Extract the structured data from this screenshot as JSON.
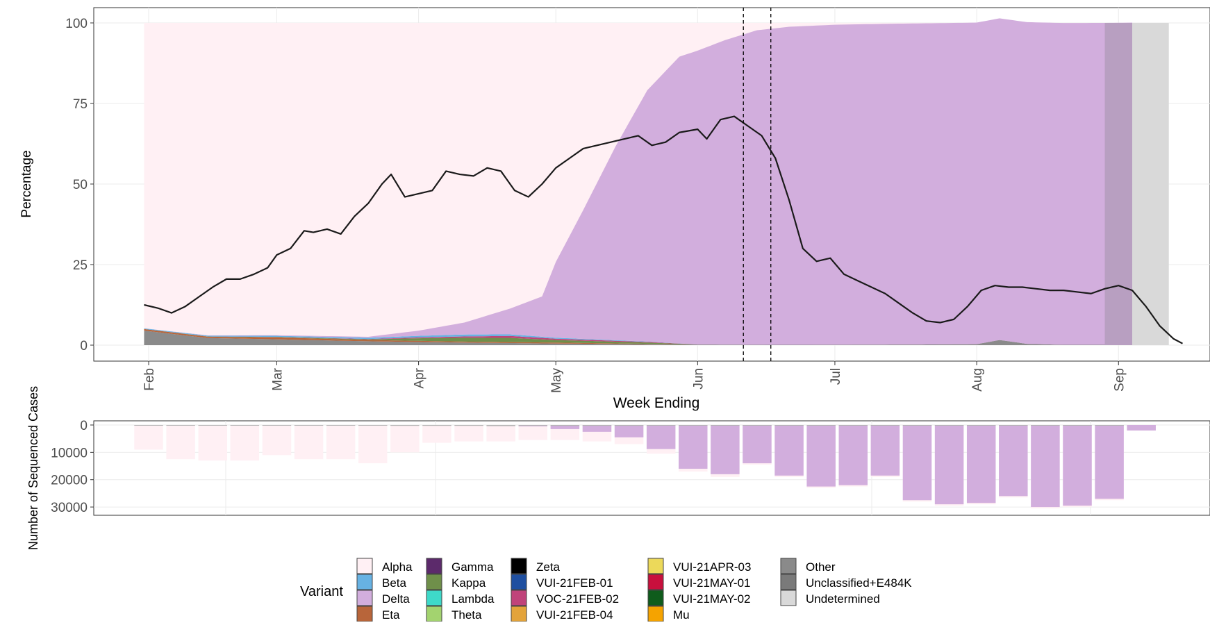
{
  "chart_data": [
    {
      "type": "area",
      "ylabel": "Percentage",
      "xlabel": "Week Ending",
      "ylim": [
        0,
        100
      ],
      "y_ticks": [
        "0",
        "25",
        "50",
        "75",
        "100"
      ],
      "x_ticks": [
        {
          "label": "Feb",
          "date": "2021-02-01"
        },
        {
          "label": "Mar",
          "date": "2021-03-01"
        },
        {
          "label": "Apr",
          "date": "2021-04-01"
        },
        {
          "label": "May",
          "date": "2021-05-01"
        },
        {
          "label": "Jun",
          "date": "2021-06-01"
        },
        {
          "label": "Jul",
          "date": "2021-07-01"
        },
        {
          "label": "Aug",
          "date": "2021-08-01"
        },
        {
          "label": "Sep",
          "date": "2021-09-01"
        }
      ],
      "x_range": [
        "2021-01-20",
        "2021-09-21"
      ],
      "grid": true,
      "vertical_reference_lines": [
        "2021-06-11",
        "2021-06-17"
      ],
      "series": [
        {
          "name": "Other",
          "color": "#8a8a8a",
          "points": [
            [
              "2021-01-31",
              4.5
            ],
            [
              "2021-02-14",
              2.2
            ],
            [
              "2021-03-01",
              1.8
            ],
            [
              "2021-03-21",
              1.2
            ],
            [
              "2021-04-11",
              0.8
            ],
            [
              "2021-05-01",
              0.5
            ],
            [
              "2021-06-01",
              0.2
            ],
            [
              "2021-06-20",
              0.1
            ],
            [
              "2021-07-20",
              0.2
            ],
            [
              "2021-08-01",
              0.3
            ],
            [
              "2021-08-06",
              1.6
            ],
            [
              "2021-08-12",
              0.4
            ],
            [
              "2021-08-20",
              0.1
            ],
            [
              "2021-08-28",
              0.1
            ]
          ]
        },
        {
          "name": "Eta",
          "color": "#b8653a",
          "points": [
            [
              "2021-01-31",
              0.5
            ],
            [
              "2021-02-14",
              0.4
            ],
            [
              "2021-03-01",
              0.6
            ],
            [
              "2021-03-21",
              0.4
            ],
            [
              "2021-04-11",
              0.3
            ],
            [
              "2021-05-01",
              0.3
            ],
            [
              "2021-05-21",
              0.1
            ],
            [
              "2021-06-01",
              0
            ]
          ]
        },
        {
          "name": "Kappa",
          "color": "#6f8f4a",
          "points": [
            [
              "2021-01-31",
              0
            ],
            [
              "2021-03-21",
              0.2
            ],
            [
              "2021-04-01",
              0.8
            ],
            [
              "2021-04-11",
              1.2
            ],
            [
              "2021-04-21",
              1.3
            ],
            [
              "2021-05-01",
              0.8
            ],
            [
              "2021-05-21",
              0.4
            ],
            [
              "2021-06-01",
              0
            ]
          ]
        },
        {
          "name": "VOC-21FEB-02",
          "color": "#c0437a",
          "points": [
            [
              "2021-01-31",
              0
            ],
            [
              "2021-03-21",
              0.1
            ],
            [
              "2021-04-11",
              0.4
            ],
            [
              "2021-04-21",
              0.6
            ],
            [
              "2021-05-01",
              0.4
            ],
            [
              "2021-05-21",
              0.2
            ],
            [
              "2021-06-01",
              0
            ]
          ]
        },
        {
          "name": "Beta",
          "color": "#67b2e3",
          "points": [
            [
              "2021-01-31",
              0.2
            ],
            [
              "2021-03-21",
              0.4
            ],
            [
              "2021-04-01",
              0.5
            ],
            [
              "2021-04-11",
              0.6
            ],
            [
              "2021-04-21",
              0.5
            ],
            [
              "2021-05-01",
              0.3
            ],
            [
              "2021-06-01",
              0
            ]
          ]
        },
        {
          "name": "Delta",
          "color": "#d2aedd",
          "points": [
            [
              "2021-01-31",
              0
            ],
            [
              "2021-03-21",
              0.3
            ],
            [
              "2021-04-01",
              1.6
            ],
            [
              "2021-04-11",
              3.7
            ],
            [
              "2021-04-21",
              8
            ],
            [
              "2021-04-28",
              12.5
            ],
            [
              "2021-05-01",
              23.5
            ],
            [
              "2021-05-07",
              40
            ],
            [
              "2021-05-14",
              60
            ],
            [
              "2021-05-21",
              78
            ],
            [
              "2021-05-28",
              89
            ],
            [
              "2021-06-01",
              91.2
            ],
            [
              "2021-06-07",
              94.5
            ],
            [
              "2021-06-14",
              97.6
            ],
            [
              "2021-06-21",
              98.7
            ],
            [
              "2021-07-01",
              99.3
            ],
            [
              "2021-07-15",
              99.6
            ],
            [
              "2021-08-01",
              99.8
            ],
            [
              "2021-08-29",
              99.9
            ],
            [
              "2021-09-04",
              100
            ]
          ]
        },
        {
          "name": "Undetermined",
          "color": "#d9d9d9",
          "points": [
            [
              "2021-08-29",
              0
            ],
            [
              "2021-09-04",
              100
            ],
            [
              "2021-09-12",
              100
            ]
          ]
        }
      ],
      "line_series": {
        "color": "#1a1a1a",
        "points": [
          [
            "2021-01-31",
            12.5
          ],
          [
            "2021-02-03",
            11.5
          ],
          [
            "2021-02-06",
            10
          ],
          [
            "2021-02-09",
            12
          ],
          [
            "2021-02-12",
            15
          ],
          [
            "2021-02-15",
            18
          ],
          [
            "2021-02-18",
            20.5
          ],
          [
            "2021-02-21",
            20.5
          ],
          [
            "2021-02-24",
            22
          ],
          [
            "2021-02-27",
            24
          ],
          [
            "2021-03-01",
            28
          ],
          [
            "2021-03-04",
            30
          ],
          [
            "2021-03-07",
            35.5
          ],
          [
            "2021-03-09",
            35
          ],
          [
            "2021-03-12",
            36
          ],
          [
            "2021-03-15",
            34.5
          ],
          [
            "2021-03-18",
            40
          ],
          [
            "2021-03-21",
            44
          ],
          [
            "2021-03-24",
            50
          ],
          [
            "2021-03-26",
            53
          ],
          [
            "2021-03-29",
            46
          ],
          [
            "2021-04-01",
            47
          ],
          [
            "2021-04-04",
            48
          ],
          [
            "2021-04-07",
            54
          ],
          [
            "2021-04-10",
            53
          ],
          [
            "2021-04-13",
            52.5
          ],
          [
            "2021-04-16",
            55
          ],
          [
            "2021-04-19",
            54
          ],
          [
            "2021-04-22",
            48
          ],
          [
            "2021-04-25",
            46
          ],
          [
            "2021-04-28",
            50
          ],
          [
            "2021-05-01",
            55
          ],
          [
            "2021-05-04",
            58
          ],
          [
            "2021-05-07",
            61
          ],
          [
            "2021-05-10",
            62
          ],
          [
            "2021-05-13",
            63
          ],
          [
            "2021-05-16",
            64
          ],
          [
            "2021-05-19",
            65
          ],
          [
            "2021-05-22",
            62
          ],
          [
            "2021-05-25",
            63
          ],
          [
            "2021-05-28",
            66
          ],
          [
            "2021-06-01",
            67
          ],
          [
            "2021-06-03",
            64
          ],
          [
            "2021-06-06",
            70
          ],
          [
            "2021-06-09",
            71
          ],
          [
            "2021-06-12",
            68
          ],
          [
            "2021-06-15",
            65
          ],
          [
            "2021-06-18",
            58
          ],
          [
            "2021-06-21",
            45
          ],
          [
            "2021-06-24",
            30
          ],
          [
            "2021-06-27",
            26
          ],
          [
            "2021-06-30",
            27
          ],
          [
            "2021-07-03",
            22
          ],
          [
            "2021-07-06",
            20
          ],
          [
            "2021-07-09",
            18
          ],
          [
            "2021-07-12",
            16
          ],
          [
            "2021-07-15",
            13
          ],
          [
            "2021-07-18",
            10
          ],
          [
            "2021-07-21",
            7.5
          ],
          [
            "2021-07-24",
            7
          ],
          [
            "2021-07-27",
            8
          ],
          [
            "2021-07-30",
            12
          ],
          [
            "2021-08-02",
            17
          ],
          [
            "2021-08-05",
            18.5
          ],
          [
            "2021-08-08",
            18
          ],
          [
            "2021-08-11",
            18
          ],
          [
            "2021-08-14",
            17.5
          ],
          [
            "2021-08-17",
            17
          ],
          [
            "2021-08-20",
            17
          ],
          [
            "2021-08-23",
            16.5
          ],
          [
            "2021-08-26",
            16
          ],
          [
            "2021-08-29",
            17.5
          ],
          [
            "2021-09-01",
            18.5
          ],
          [
            "2021-09-04",
            17
          ],
          [
            "2021-09-07",
            12
          ],
          [
            "2021-09-10",
            6
          ],
          [
            "2021-09-13",
            2
          ],
          [
            "2021-09-15",
            0.5
          ]
        ]
      }
    },
    {
      "type": "bar",
      "ylabel": "Number of Sequenced Cases",
      "ylim": [
        0,
        31500
      ],
      "y_ticks": [
        "0",
        "10000",
        "20000",
        "30000"
      ],
      "inverted": true,
      "weeks": [
        {
          "date": "2021-02-01",
          "total": 9000,
          "delta": 0,
          "other": 100
        },
        {
          "date": "2021-02-08",
          "total": 12500,
          "delta": 0,
          "other": 100
        },
        {
          "date": "2021-02-15",
          "total": 13000,
          "delta": 0,
          "other": 100
        },
        {
          "date": "2021-02-22",
          "total": 13000,
          "delta": 0,
          "other": 150
        },
        {
          "date": "2021-03-01",
          "total": 11000,
          "delta": 0,
          "other": 150
        },
        {
          "date": "2021-03-08",
          "total": 12500,
          "delta": 0,
          "other": 150
        },
        {
          "date": "2021-03-15",
          "total": 12500,
          "delta": 0,
          "other": 150
        },
        {
          "date": "2021-03-22",
          "total": 14000,
          "delta": 0,
          "other": 150
        },
        {
          "date": "2021-03-29",
          "total": 10000,
          "delta": 0,
          "other": 300
        },
        {
          "date": "2021-04-05",
          "total": 6500,
          "delta": 0,
          "other": 300
        },
        {
          "date": "2021-04-12",
          "total": 6000,
          "delta": 0,
          "other": 300
        },
        {
          "date": "2021-04-19",
          "total": 6000,
          "delta": 0,
          "other": 400
        },
        {
          "date": "2021-04-26",
          "total": 5500,
          "delta": 500,
          "other": 300
        },
        {
          "date": "2021-05-03",
          "total": 5500,
          "delta": 1500,
          "other": 300
        },
        {
          "date": "2021-05-10",
          "total": 6000,
          "delta": 2500,
          "other": 300
        },
        {
          "date": "2021-05-17",
          "total": 7000,
          "delta": 4500,
          "other": 300
        },
        {
          "date": "2021-05-24",
          "total": 10500,
          "delta": 8800,
          "other": 200
        },
        {
          "date": "2021-05-31",
          "total": 17000,
          "delta": 16000,
          "other": 200
        },
        {
          "date": "2021-06-07",
          "total": 19000,
          "delta": 18000,
          "other": 100
        },
        {
          "date": "2021-06-14",
          "total": 14500,
          "delta": 14000,
          "other": 100
        },
        {
          "date": "2021-06-21",
          "total": 19000,
          "delta": 18500,
          "other": 100
        },
        {
          "date": "2021-06-28",
          "total": 23000,
          "delta": 22500,
          "other": 100
        },
        {
          "date": "2021-07-05",
          "total": 22500,
          "delta": 22000,
          "other": 100
        },
        {
          "date": "2021-07-12",
          "total": 19000,
          "delta": 18500,
          "other": 100
        },
        {
          "date": "2021-07-19",
          "total": 28000,
          "delta": 27500,
          "other": 100
        },
        {
          "date": "2021-07-26",
          "total": 29500,
          "delta": 29000,
          "other": 100
        },
        {
          "date": "2021-08-02",
          "total": 29000,
          "delta": 28500,
          "other": 100
        },
        {
          "date": "2021-08-09",
          "total": 26500,
          "delta": 26000,
          "other": 100
        },
        {
          "date": "2021-08-16",
          "total": 30500,
          "delta": 30000,
          "other": 100
        },
        {
          "date": "2021-08-23",
          "total": 30000,
          "delta": 29500,
          "other": 100
        },
        {
          "date": "2021-08-30",
          "total": 27500,
          "delta": 27000,
          "other": 100
        },
        {
          "date": "2021-09-06",
          "total": 2000,
          "delta": 2000,
          "other": 0
        }
      ]
    }
  ],
  "legend": {
    "title": "Variant",
    "placement": "bottom",
    "items": [
      {
        "label": "Alpha",
        "color": "#fff0f4"
      },
      {
        "label": "Beta",
        "color": "#67b2e3"
      },
      {
        "label": "Delta",
        "color": "#d2aedd"
      },
      {
        "label": "Eta",
        "color": "#b8653a"
      },
      {
        "label": "Gamma",
        "color": "#5c2a6b"
      },
      {
        "label": "Kappa",
        "color": "#6f8f4a"
      },
      {
        "label": "Lambda",
        "color": "#3ed9c9"
      },
      {
        "label": "Theta",
        "color": "#a3d36f"
      },
      {
        "label": "Zeta",
        "color": "#000000"
      },
      {
        "label": "VUI-21FEB-01",
        "color": "#1f4fa0"
      },
      {
        "label": "VOC-21FEB-02",
        "color": "#c0437a"
      },
      {
        "label": "VUI-21FEB-04",
        "color": "#e3a33a"
      },
      {
        "label": "VUI-21APR-03",
        "color": "#ecd95a"
      },
      {
        "label": "VUI-21MAY-01",
        "color": "#c8103d"
      },
      {
        "label": "VUI-21MAY-02",
        "color": "#0f5c1c"
      },
      {
        "label": "Mu",
        "color": "#f5a300"
      },
      {
        "label": "Other",
        "color": "#8a8a8a"
      },
      {
        "label": "Unclassified+E484K",
        "color": "#7a7a7a"
      },
      {
        "label": "Undetermined",
        "color": "#d9d9d9"
      }
    ]
  }
}
